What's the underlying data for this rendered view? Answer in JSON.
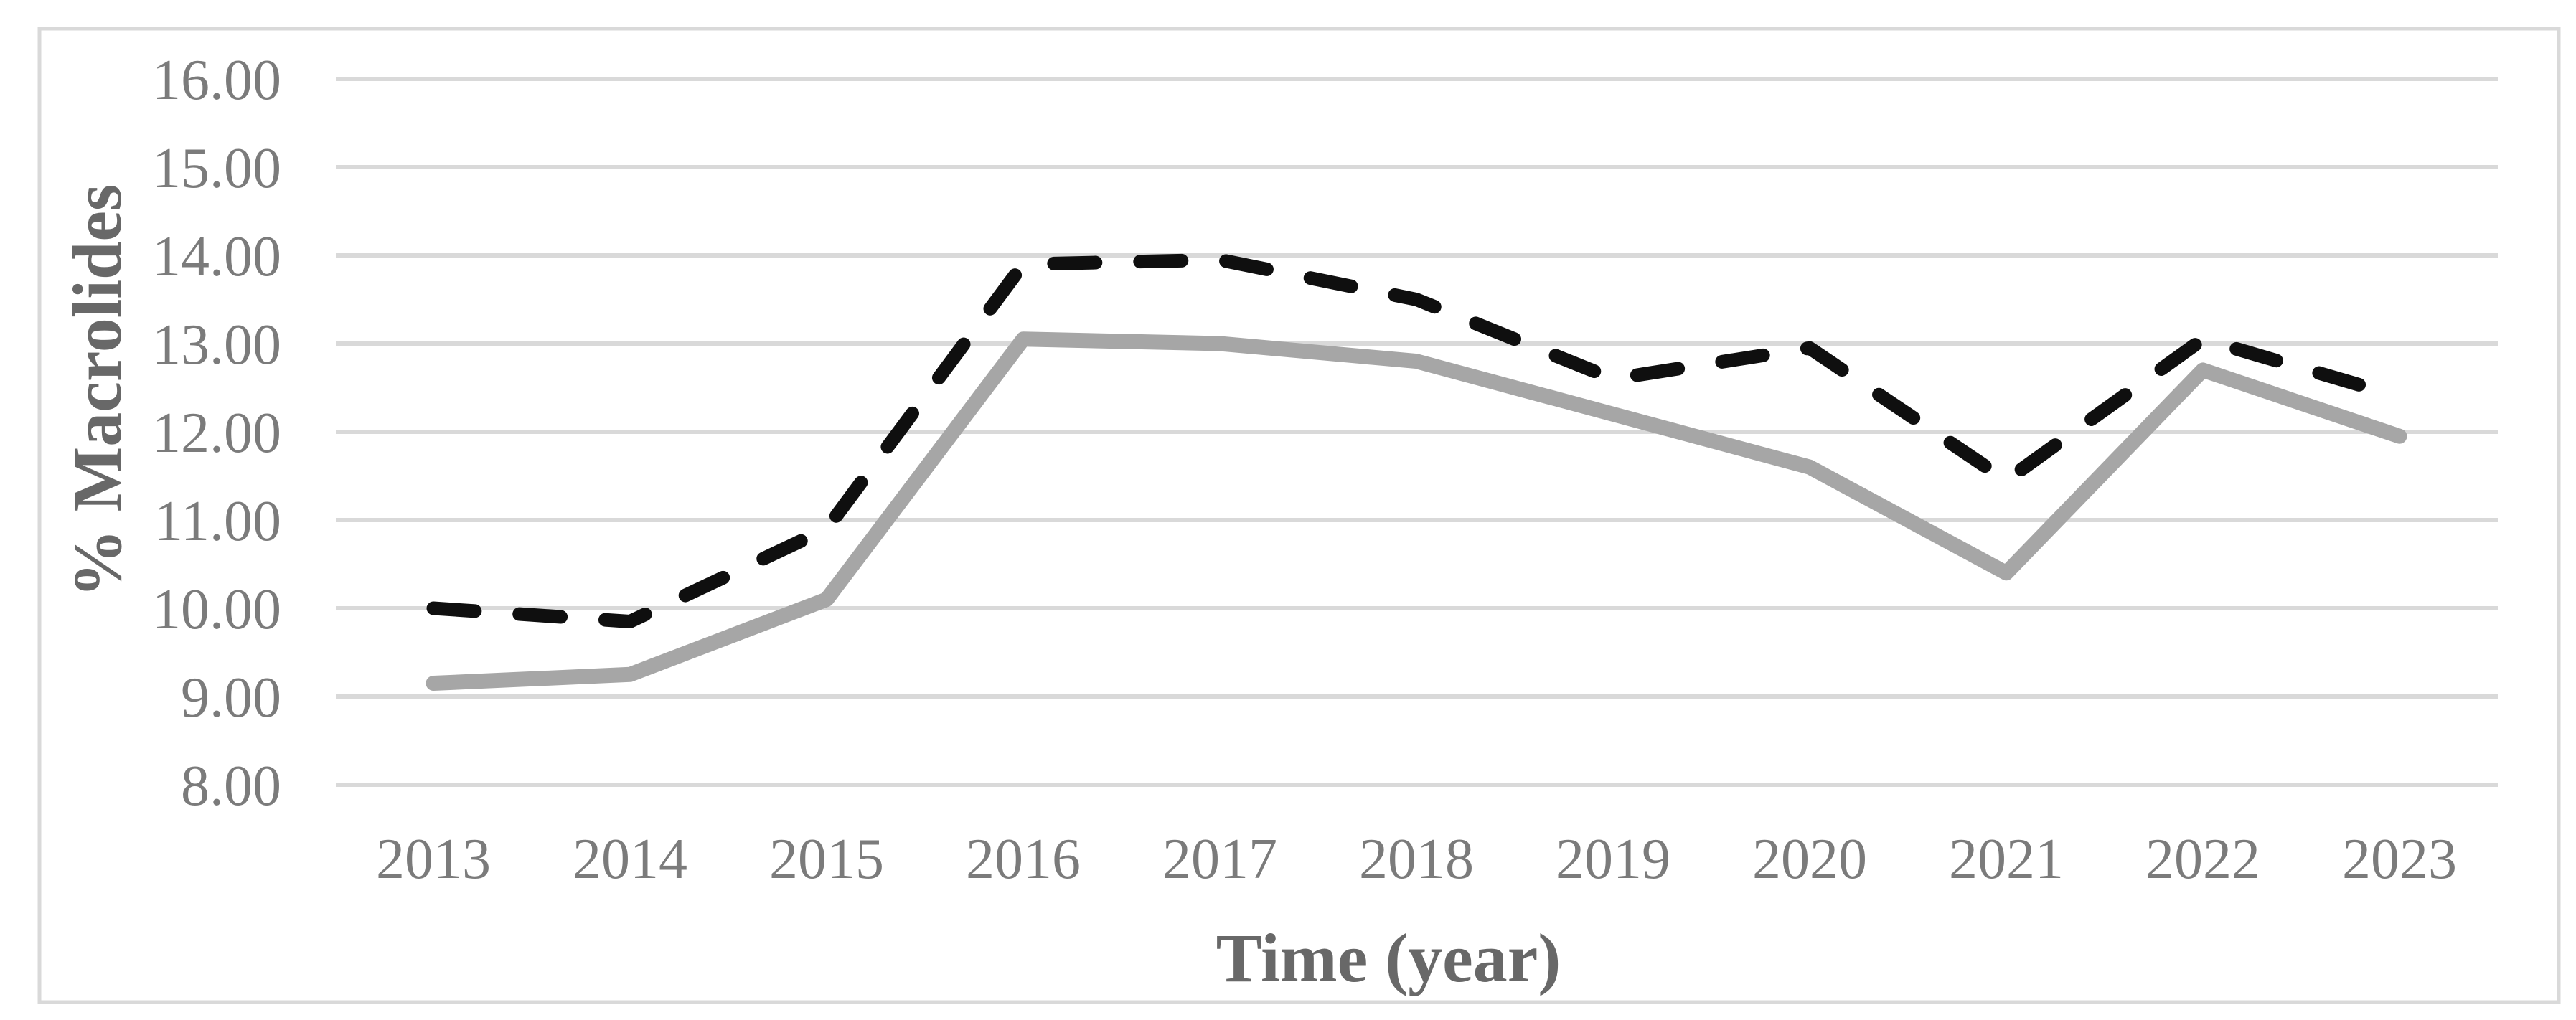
{
  "figure": {
    "background": "#ffffff",
    "border_color": "#d9d9d9",
    "gridline_color": "#d9d9d9",
    "tick_label_color": "#7b7b7b",
    "axis_title_color": "#686868"
  },
  "chart_data": {
    "type": "line",
    "title": "",
    "xlabel": "Time (year)",
    "ylabel": "% Macrolides",
    "categories": [
      "2013",
      "2014",
      "2015",
      "2016",
      "2017",
      "2018",
      "2019",
      "2020",
      "2021",
      "2022",
      "2023"
    ],
    "series": [
      {
        "name": "black-dashed-line",
        "line_style": "dashed",
        "color": "#0f0f0f",
        "values": [
          10.0,
          9.85,
          10.9,
          13.9,
          13.95,
          13.5,
          12.6,
          12.95,
          11.45,
          13.05,
          12.4
        ]
      },
      {
        "name": "gray-solid-line",
        "line_style": "solid",
        "color": "#a6a6a6",
        "values": [
          9.15,
          9.25,
          10.1,
          13.05,
          13.0,
          12.8,
          12.2,
          11.6,
          10.4,
          12.7,
          11.95
        ]
      }
    ],
    "ylim": [
      8,
      16
    ],
    "ytick_step": 1,
    "y_tick_labels": [
      "16.00",
      "15.00",
      "14.00",
      "13.00",
      "12.00",
      "11.00",
      "10.00",
      "9.00",
      "8.00"
    ],
    "grid": true,
    "legend_position": "none"
  }
}
